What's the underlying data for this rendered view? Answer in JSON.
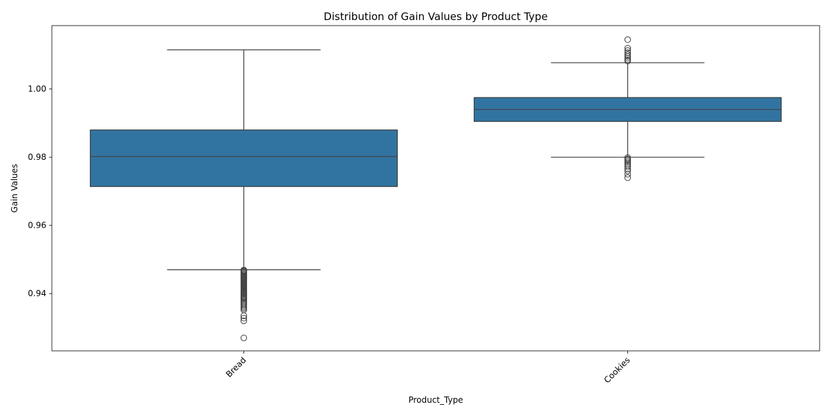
{
  "chart_data": {
    "type": "box",
    "title": "Distribution of Gain Values by Product Type",
    "xlabel": "Product_Type",
    "ylabel": "Gain Values",
    "ylim": [
      0.9232,
      1.0186
    ],
    "yticks": [
      0.94,
      0.96,
      0.98,
      1.0
    ],
    "ytick_labels": [
      "0.94",
      "0.96",
      "0.98",
      "1.00"
    ],
    "grid": false,
    "legend": "none",
    "box_color": "#3274a1",
    "edge_color": "#3f3f3f",
    "categories": [
      "Bread",
      "Cookies"
    ],
    "boxes": [
      {
        "category": "Bread",
        "whisker_low": 0.947,
        "q1": 0.9714,
        "median": 0.9802,
        "q3": 0.988,
        "whisker_high": 1.0115,
        "outliers": [
          0.9469,
          0.9467,
          0.9465,
          0.9462,
          0.9459,
          0.9456,
          0.9453,
          0.945,
          0.9447,
          0.9444,
          0.9441,
          0.9438,
          0.9435,
          0.9432,
          0.9429,
          0.9426,
          0.9423,
          0.942,
          0.9417,
          0.9414,
          0.9411,
          0.9408,
          0.9405,
          0.9402,
          0.9399,
          0.9396,
          0.9393,
          0.939,
          0.9387,
          0.9384,
          0.938,
          0.9376,
          0.9372,
          0.9368,
          0.9364,
          0.936,
          0.9356,
          0.9352,
          0.9335,
          0.9328,
          0.932,
          0.927
        ]
      },
      {
        "category": "Cookies",
        "whisker_low": 0.98,
        "q1": 0.9905,
        "median": 0.994,
        "q3": 0.9975,
        "whisker_high": 1.0077,
        "outliers": [
          1.0145,
          1.012,
          1.0113,
          1.0107,
          1.0101,
          1.0096,
          1.0091,
          1.0086,
          1.0082,
          0.9799,
          0.9795,
          0.9791,
          0.9787,
          0.9782,
          0.9777,
          0.9772,
          0.9766,
          0.976,
          0.975,
          0.974
        ]
      }
    ]
  }
}
